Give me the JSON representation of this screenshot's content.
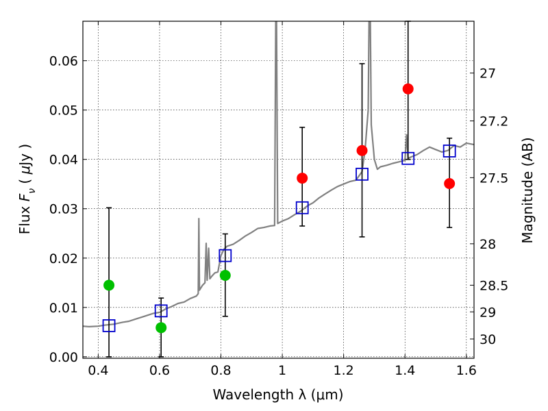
{
  "chart_data": {
    "type": "scatter",
    "xlabel": "Wavelength  λ (μm)",
    "ylabel": "Flux  F_ν  ( μJy )",
    "y2label": "Magnitude (AB)",
    "xlim": [
      0.35,
      1.625
    ],
    "ylim": [
      -0.0003,
      0.068
    ],
    "grid": true,
    "x_ticks": [
      0.4,
      0.6,
      0.8,
      1.0,
      1.2,
      1.4,
      1.6
    ],
    "x_tick_labels": [
      "0.4",
      "0.6",
      "0.8",
      "1",
      "1.2",
      "1.4",
      "1.6"
    ],
    "y_ticks": [
      0.0,
      0.01,
      0.02,
      0.03,
      0.04,
      0.05,
      0.06
    ],
    "y_tick_labels": [
      "0.00",
      "0.01",
      "0.02",
      "0.03",
      "0.04",
      "0.05",
      "0.06"
    ],
    "mag_ticks": [
      {
        "label": "27",
        "flux": 0.0575
      },
      {
        "label": "27.2",
        "flux": 0.0478
      },
      {
        "label": "27.5",
        "flux": 0.0363
      },
      {
        "label": "28",
        "flux": 0.0229
      },
      {
        "label": "28.5",
        "flux": 0.0145
      },
      {
        "label": "29",
        "flux": 0.0091
      },
      {
        "label": "30",
        "flux": 0.0036
      }
    ],
    "series": [
      {
        "color": "#00c000",
        "marker": "circle",
        "points": [
          {
            "x": 0.435,
            "y": 0.0145
          },
          {
            "x": 0.605,
            "y": 0.0059
          },
          {
            "x": 0.814,
            "y": 0.0165
          }
        ]
      },
      {
        "color": "#ff0000",
        "marker": "circle",
        "points": [
          {
            "x": 1.065,
            "y": 0.0362
          },
          {
            "x": 1.26,
            "y": 0.0418
          },
          {
            "x": 1.41,
            "y": 0.0543
          },
          {
            "x": 1.545,
            "y": 0.0351
          }
        ]
      },
      {
        "color": "#0000cc",
        "marker": "open-square",
        "points": [
          {
            "x": 0.435,
            "y": 0.0063
          },
          {
            "x": 0.605,
            "y": 0.0093
          },
          {
            "x": 0.814,
            "y": 0.0205
          },
          {
            "x": 1.065,
            "y": 0.0302
          },
          {
            "x": 1.26,
            "y": 0.037
          },
          {
            "x": 1.41,
            "y": 0.0402
          },
          {
            "x": 1.545,
            "y": 0.0417
          }
        ]
      }
    ],
    "error_bars": [
      {
        "x": 0.435,
        "low": 0.0,
        "high": 0.0302
      },
      {
        "x": 0.605,
        "low": 0.0,
        "high": 0.0119
      },
      {
        "x": 0.814,
        "low": 0.0082,
        "high": 0.0249
      },
      {
        "x": 1.065,
        "low": 0.0265,
        "high": 0.0465
      },
      {
        "x": 1.26,
        "low": 0.0243,
        "high": 0.0594
      },
      {
        "x": 1.41,
        "low": 0.04,
        "high": 0.068
      },
      {
        "x": 1.545,
        "low": 0.0262,
        "high": 0.0443
      }
    ],
    "model_spectrum": {
      "color": "#808080",
      "points": [
        [
          0.35,
          0.0062
        ],
        [
          0.37,
          0.0061
        ],
        [
          0.4,
          0.0062
        ],
        [
          0.42,
          0.0064
        ],
        [
          0.45,
          0.0066
        ],
        [
          0.48,
          0.007
        ],
        [
          0.5,
          0.0072
        ],
        [
          0.52,
          0.0076
        ],
        [
          0.55,
          0.0082
        ],
        [
          0.58,
          0.0088
        ],
        [
          0.6,
          0.009
        ],
        [
          0.62,
          0.0097
        ],
        [
          0.64,
          0.0102
        ],
        [
          0.66,
          0.0108
        ],
        [
          0.68,
          0.0111
        ],
        [
          0.7,
          0.0118
        ],
        [
          0.72,
          0.0123
        ],
        [
          0.726,
          0.0128
        ],
        [
          0.728,
          0.028
        ],
        [
          0.73,
          0.0135
        ],
        [
          0.735,
          0.014
        ],
        [
          0.74,
          0.0145
        ],
        [
          0.748,
          0.015
        ],
        [
          0.752,
          0.023
        ],
        [
          0.755,
          0.0155
        ],
        [
          0.76,
          0.022
        ],
        [
          0.764,
          0.0158
        ],
        [
          0.77,
          0.0163
        ],
        [
          0.78,
          0.017
        ],
        [
          0.79,
          0.0172
        ],
        [
          0.8,
          0.0205
        ],
        [
          0.81,
          0.0218
        ],
        [
          0.82,
          0.0224
        ],
        [
          0.84,
          0.0228
        ],
        [
          0.86,
          0.0236
        ],
        [
          0.88,
          0.0245
        ],
        [
          0.9,
          0.0252
        ],
        [
          0.92,
          0.026
        ],
        [
          0.94,
          0.0262
        ],
        [
          0.96,
          0.0265
        ],
        [
          0.975,
          0.0266
        ],
        [
          0.98,
          0.082
        ],
        [
          0.985,
          0.027
        ],
        [
          1.0,
          0.0275
        ],
        [
          1.02,
          0.028
        ],
        [
          1.04,
          0.0288
        ],
        [
          1.06,
          0.0295
        ],
        [
          1.08,
          0.0305
        ],
        [
          1.1,
          0.0312
        ],
        [
          1.12,
          0.0322
        ],
        [
          1.14,
          0.033
        ],
        [
          1.16,
          0.0338
        ],
        [
          1.18,
          0.0345
        ],
        [
          1.2,
          0.035
        ],
        [
          1.22,
          0.0355
        ],
        [
          1.24,
          0.0358
        ],
        [
          1.26,
          0.0375
        ],
        [
          1.27,
          0.042
        ],
        [
          1.28,
          0.05
        ],
        [
          1.285,
          0.082
        ],
        [
          1.29,
          0.047
        ],
        [
          1.3,
          0.04
        ],
        [
          1.31,
          0.038
        ],
        [
          1.32,
          0.0385
        ],
        [
          1.34,
          0.0388
        ],
        [
          1.36,
          0.0392
        ],
        [
          1.38,
          0.0395
        ],
        [
          1.4,
          0.0398
        ],
        [
          1.405,
          0.045
        ],
        [
          1.41,
          0.0402
        ],
        [
          1.42,
          0.0405
        ],
        [
          1.44,
          0.041
        ],
        [
          1.46,
          0.0418
        ],
        [
          1.48,
          0.0425
        ],
        [
          1.5,
          0.042
        ],
        [
          1.52,
          0.0415
        ],
        [
          1.54,
          0.0418
        ],
        [
          1.56,
          0.0428
        ],
        [
          1.58,
          0.0425
        ],
        [
          1.6,
          0.0433
        ],
        [
          1.625,
          0.043
        ]
      ]
    }
  }
}
